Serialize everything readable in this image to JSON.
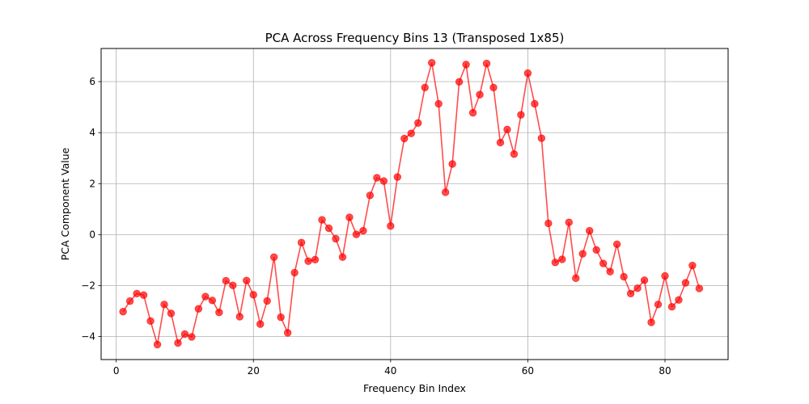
{
  "chart_data": {
    "type": "line",
    "title": "PCA Across Frequency Bins 13 (Transposed 1x85)",
    "xlabel": "Frequency Bin Index",
    "ylabel": "PCA Component Value",
    "xlim": [
      -2.2,
      89.2
    ],
    "ylim": [
      -4.9,
      7.3
    ],
    "xticks": [
      0,
      20,
      40,
      60,
      80
    ],
    "yticks": [
      -4,
      -2,
      0,
      2,
      4,
      6
    ],
    "xtick_labels": [
      "0",
      "20",
      "40",
      "60",
      "80"
    ],
    "ytick_labels": [
      "−4",
      "−2",
      "0",
      "2",
      "4",
      "6"
    ],
    "grid": true,
    "series": [
      {
        "color": "#ff0000",
        "marker": "circle",
        "x": [
          1,
          2,
          3,
          4,
          5,
          6,
          7,
          8,
          9,
          10,
          11,
          12,
          13,
          14,
          15,
          16,
          17,
          18,
          19,
          20,
          21,
          22,
          23,
          24,
          25,
          26,
          27,
          28,
          29,
          30,
          31,
          32,
          33,
          34,
          35,
          36,
          37,
          38,
          39,
          40,
          41,
          42,
          43,
          44,
          45,
          46,
          47,
          48,
          49,
          50,
          51,
          52,
          53,
          54,
          55,
          56,
          57,
          58,
          59,
          60,
          61,
          62,
          63,
          64,
          65,
          66,
          67,
          68,
          69,
          70,
          71,
          72,
          73,
          74,
          75,
          76,
          77,
          78,
          79,
          80,
          81,
          82,
          83,
          84,
          85
        ],
        "y": [
          -3.02,
          -2.61,
          -2.31,
          -2.37,
          -3.39,
          -4.31,
          -2.74,
          -3.09,
          -4.25,
          -3.9,
          -4.01,
          -2.91,
          -2.43,
          -2.58,
          -3.05,
          -1.81,
          -1.99,
          -3.22,
          -1.8,
          -2.36,
          -3.51,
          -2.6,
          -0.88,
          -3.24,
          -3.85,
          -1.49,
          -0.31,
          -1.04,
          -0.98,
          0.58,
          0.25,
          -0.16,
          -0.88,
          0.68,
          0.01,
          0.15,
          1.54,
          2.23,
          2.1,
          0.34,
          2.26,
          3.77,
          3.97,
          4.38,
          5.77,
          6.74,
          5.13,
          1.66,
          2.77,
          5.99,
          6.67,
          4.78,
          5.49,
          6.71,
          5.77,
          3.61,
          4.12,
          3.16,
          4.7,
          6.33,
          5.13,
          3.78,
          0.44,
          -1.09,
          -0.97,
          0.48,
          -1.71,
          -0.75,
          0.15,
          -0.6,
          -1.13,
          -1.45,
          -0.38,
          -1.65,
          -2.31,
          -2.1,
          -1.79,
          -3.44,
          -2.74,
          -1.62,
          -2.83,
          -2.56,
          -1.89,
          -1.21,
          -2.11
        ]
      }
    ]
  }
}
